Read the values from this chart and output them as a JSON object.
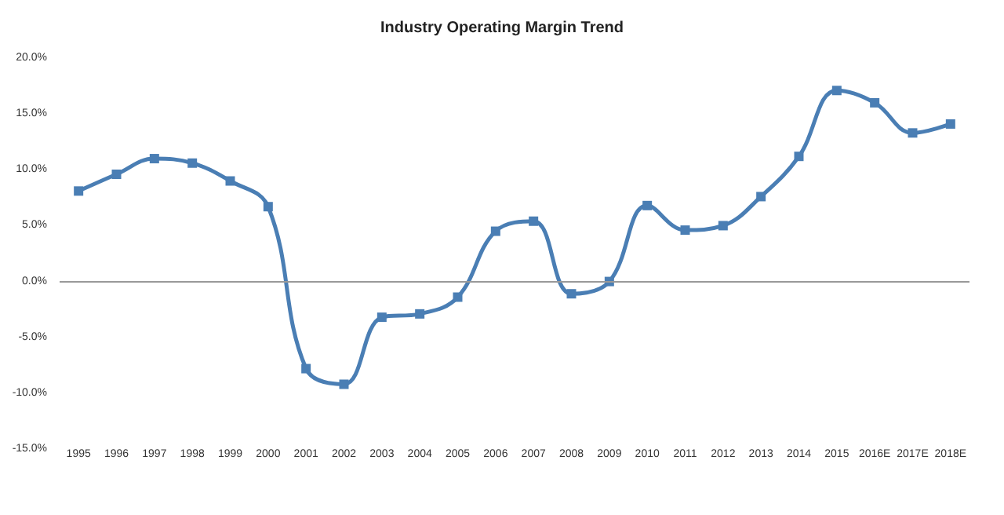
{
  "chart_data": {
    "type": "line",
    "title": "Industry Operating Margin Trend",
    "categories": [
      "1995",
      "1996",
      "1997",
      "1998",
      "1999",
      "2000",
      "2001",
      "2002",
      "2003",
      "2004",
      "2005",
      "2006",
      "2007",
      "2008",
      "2009",
      "2010",
      "2011",
      "2012",
      "2013",
      "2014",
      "2015",
      "2016E",
      "2017E",
      "2018E"
    ],
    "series": [
      {
        "color": "#4a7eb4",
        "values": [
          8.1,
          9.6,
          11.0,
          10.6,
          9.0,
          6.7,
          -7.8,
          -9.2,
          -3.2,
          -2.9,
          -1.4,
          4.5,
          5.4,
          -1.1,
          0.0,
          6.8,
          4.6,
          5.0,
          7.6,
          11.2,
          17.1,
          16.0,
          13.3,
          14.1
        ]
      }
    ],
    "ylim": [
      -15,
      20
    ],
    "yticks": [
      {
        "value": -15,
        "label": "-15.0%"
      },
      {
        "value": -10,
        "label": "-10.0%"
      },
      {
        "value": -5,
        "label": "-5.0%"
      },
      {
        "value": 0,
        "label": "0.0%"
      },
      {
        "value": 5,
        "label": "5.0%"
      },
      {
        "value": 10,
        "label": "10.0%"
      },
      {
        "value": 15,
        "label": "15.0%"
      },
      {
        "value": 20,
        "label": "20.0%"
      }
    ],
    "ref_lines": [
      {
        "axis": "y",
        "value": 0,
        "color": "#999999"
      }
    ],
    "marker": "square",
    "line_style": "solid"
  }
}
